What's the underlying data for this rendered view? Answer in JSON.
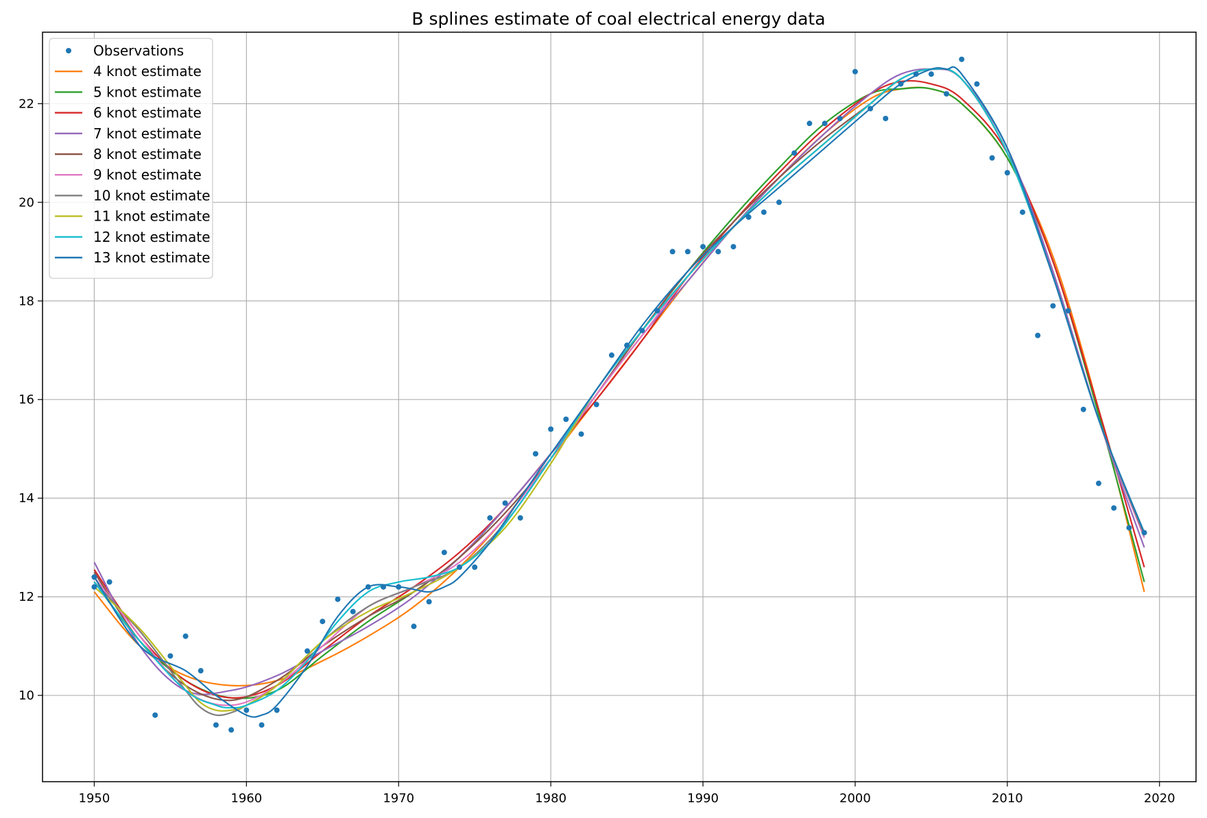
{
  "chart_data": {
    "type": "line",
    "title": "B splines estimate of coal electrical energy data",
    "xlabel": "",
    "ylabel": "",
    "xlim": [
      1946.6,
      1922.4
    ],
    "xlim_note": "",
    "ylim": [
      8.25,
      23.45
    ],
    "xticks": [
      1950,
      1960,
      1970,
      1980,
      1990,
      2000,
      2010,
      2020
    ],
    "yticks": [
      10,
      12,
      14,
      16,
      18,
      20,
      22
    ],
    "grid": true,
    "legend_position": "top-left",
    "observations": {
      "name": "Observations",
      "color": "#1f77b4",
      "x": [
        1950,
        1950,
        1951,
        1954,
        1955,
        1956,
        1957,
        1958,
        1959,
        1960,
        1961,
        1962,
        1964,
        1965,
        1966,
        1967,
        1968,
        1969,
        1970,
        1971,
        1972,
        1973,
        1974,
        1975,
        1976,
        1977,
        1978,
        1979,
        1980,
        1981,
        1982,
        1983,
        1984,
        1985,
        1986,
        1987,
        1988,
        1989,
        1990,
        1991,
        1992,
        1993,
        1994,
        1995,
        1996,
        1997,
        1998,
        1999,
        2000,
        2001,
        2002,
        2003,
        2004,
        2005,
        2006,
        2007,
        2008,
        2009,
        2010,
        2011,
        2012,
        2013,
        2014,
        2015,
        2016,
        2017,
        2018,
        2019
      ],
      "y": [
        12.4,
        12.2,
        12.3,
        9.6,
        10.8,
        11.2,
        10.5,
        9.4,
        9.3,
        9.7,
        9.4,
        9.7,
        10.9,
        11.5,
        11.95,
        11.7,
        12.2,
        12.2,
        12.2,
        11.4,
        11.9,
        12.9,
        12.6,
        12.6,
        13.6,
        13.9,
        13.6,
        14.9,
        15.4,
        15.6,
        15.3,
        15.9,
        16.9,
        17.1,
        17.4,
        17.8,
        19.0,
        19.0,
        19.1,
        19.0,
        19.1,
        19.7,
        19.8,
        20.0,
        21.0,
        21.6,
        21.6,
        21.7,
        22.65,
        21.9,
        21.7,
        22.4,
        22.6,
        22.6,
        22.2,
        22.9,
        22.4,
        20.9,
        20.6,
        19.8,
        17.3,
        17.9,
        17.8,
        15.8,
        14.3,
        13.8,
        13.4,
        13.3
      ]
    },
    "series": [
      {
        "name": "4 knot estimate",
        "color": "#ff7f0e",
        "x": [
          1950,
          1953,
          1956,
          1959,
          1962,
          1965,
          1968,
          1971,
          1974,
          1977,
          1980,
          1983,
          1986,
          1989,
          1992,
          1995,
          1998,
          2001,
          2003,
          2005,
          2007,
          2010,
          2013,
          2016,
          2019
        ],
        "y": [
          12.1,
          11.0,
          10.4,
          10.2,
          10.3,
          10.7,
          11.2,
          11.8,
          12.6,
          13.6,
          14.8,
          16.0,
          17.2,
          18.4,
          19.5,
          20.5,
          21.4,
          22.1,
          22.3,
          22.3,
          22.0,
          20.9,
          18.9,
          15.8,
          12.1
        ]
      },
      {
        "name": "5 knot estimate",
        "color": "#2ca02c",
        "x": [
          1950,
          1953,
          1956,
          1959,
          1962,
          1965,
          1968,
          1971,
          1974,
          1977,
          1980,
          1983,
          1986,
          1989,
          1992,
          1995,
          1998,
          2001,
          2003,
          2005,
          2007,
          2010,
          2013,
          2016,
          2019
        ],
        "y": [
          12.3,
          11.1,
          10.3,
          9.95,
          10.1,
          10.8,
          11.5,
          12.1,
          12.8,
          13.8,
          14.9,
          16.1,
          17.4,
          18.6,
          19.7,
          20.7,
          21.6,
          22.2,
          22.3,
          22.3,
          22.0,
          20.9,
          18.8,
          15.7,
          12.3
        ]
      },
      {
        "name": "6 knot estimate",
        "color": "#d62728",
        "x": [
          1950,
          1953,
          1956,
          1959,
          1962,
          1965,
          1968,
          1971,
          1974,
          1977,
          1980,
          1983,
          1986,
          1989,
          1992,
          1995,
          1998,
          2001,
          2003,
          2005,
          2007,
          2010,
          2013,
          2016,
          2019
        ],
        "y": [
          12.55,
          11.2,
          10.3,
          9.95,
          10.2,
          10.9,
          11.6,
          12.2,
          12.9,
          13.8,
          14.9,
          16.0,
          17.2,
          18.5,
          19.6,
          20.6,
          21.5,
          22.2,
          22.45,
          22.4,
          22.1,
          21.0,
          18.8,
          15.8,
          12.6
        ]
      },
      {
        "name": "7 knot estimate",
        "color": "#9467bd",
        "x": [
          1950,
          1953,
          1956,
          1959,
          1962,
          1965,
          1968,
          1971,
          1974,
          1977,
          1980,
          1983,
          1986,
          1989,
          1992,
          1995,
          1998,
          2001,
          2003,
          2005,
          2007,
          2010,
          2013,
          2016,
          2019
        ],
        "y": [
          12.7,
          11.0,
          10.1,
          10.1,
          10.4,
          10.9,
          11.4,
          12.0,
          12.8,
          13.8,
          14.9,
          16.1,
          17.3,
          18.4,
          19.5,
          20.5,
          21.4,
          22.2,
          22.6,
          22.7,
          22.5,
          21.1,
          18.6,
          15.6,
          13.0
        ]
      },
      {
        "name": "8 knot estimate",
        "color": "#8c564b",
        "x": [
          1950,
          1953,
          1956,
          1959,
          1962,
          1965,
          1968,
          1971,
          1974,
          1977,
          1980,
          1983,
          1986,
          1989,
          1992,
          1995,
          1998,
          2001,
          2003,
          2005,
          2007,
          2010,
          2013,
          2016,
          2019
        ],
        "y": [
          12.5,
          11.1,
          10.2,
          9.9,
          10.3,
          11.0,
          11.6,
          12.1,
          12.8,
          13.7,
          14.8,
          16.1,
          17.4,
          18.6,
          19.6,
          20.5,
          21.3,
          22.0,
          22.5,
          22.7,
          22.5,
          21.0,
          18.5,
          15.6,
          13.2
        ]
      },
      {
        "name": "9 knot estimate",
        "color": "#e377c2",
        "x": [
          1950,
          1953,
          1956,
          1959,
          1962,
          1965,
          1968,
          1971,
          1974,
          1977,
          1980,
          1983,
          1986,
          1989,
          1992,
          1995,
          1998,
          2001,
          2003,
          2005,
          2007,
          2010,
          2013,
          2016,
          2019
        ],
        "y": [
          12.4,
          11.2,
          10.1,
          9.8,
          10.2,
          11.0,
          11.8,
          12.2,
          12.7,
          13.6,
          14.8,
          16.1,
          17.3,
          18.5,
          19.5,
          20.4,
          21.2,
          22.0,
          22.5,
          22.7,
          22.5,
          21.0,
          18.5,
          15.6,
          13.2
        ]
      },
      {
        "name": "10 knot estimate",
        "color": "#7f7f7f",
        "x": [
          1950,
          1953,
          1956,
          1957,
          1958,
          1959,
          1960,
          1962,
          1965,
          1968,
          1971,
          1974,
          1977,
          1980,
          1983,
          1986,
          1989,
          1992,
          1995,
          1998,
          2001,
          2003,
          2005,
          2007,
          2010,
          2013,
          2016,
          2019
        ],
        "y": [
          12.3,
          11.3,
          10.1,
          9.75,
          9.6,
          9.65,
          9.8,
          10.2,
          11.1,
          11.8,
          12.2,
          12.6,
          13.5,
          14.8,
          16.2,
          17.4,
          18.5,
          19.5,
          20.4,
          21.2,
          22.0,
          22.5,
          22.7,
          22.5,
          21.0,
          18.5,
          15.6,
          13.25
        ]
      },
      {
        "name": "11 knot estimate",
        "color": "#bcbd22",
        "x": [
          1950,
          1953,
          1956,
          1957,
          1958,
          1959,
          1960,
          1962,
          1965,
          1968,
          1971,
          1974,
          1977,
          1980,
          1983,
          1986,
          1989,
          1992,
          1995,
          1998,
          2001,
          2003,
          2005,
          2007,
          2010,
          2013,
          2016,
          2019
        ],
        "y": [
          12.2,
          11.35,
          10.2,
          9.85,
          9.7,
          9.7,
          9.8,
          10.2,
          11.1,
          11.7,
          12.1,
          12.6,
          13.4,
          14.7,
          16.2,
          17.4,
          18.5,
          19.5,
          20.4,
          21.2,
          22.0,
          22.5,
          22.7,
          22.5,
          21.0,
          18.5,
          15.6,
          13.3
        ]
      },
      {
        "name": "12 knot estimate",
        "color": "#17becf",
        "x": [
          1950,
          1953,
          1956,
          1958,
          1959,
          1960,
          1962,
          1964,
          1966,
          1968,
          1970,
          1972,
          1974,
          1976,
          1978,
          1980,
          1983,
          1986,
          1989,
          1992,
          1995,
          1998,
          2001,
          2003,
          2005,
          2007,
          2010,
          2013,
          2016,
          2019
        ],
        "y": [
          12.3,
          11.1,
          10.1,
          9.8,
          9.75,
          9.8,
          10.1,
          10.7,
          11.5,
          12.1,
          12.3,
          12.4,
          12.6,
          13.1,
          13.9,
          14.8,
          16.2,
          17.4,
          18.5,
          19.5,
          20.4,
          21.2,
          22.0,
          22.5,
          22.7,
          22.5,
          21.0,
          18.5,
          15.6,
          13.3
        ]
      },
      {
        "name": "13 knot estimate",
        "color": "#1f77b4",
        "x": [
          1950,
          1953,
          1956,
          1958,
          1960,
          1961,
          1962,
          1964,
          1966,
          1968,
          1970,
          1971,
          1972,
          1973,
          1974,
          1976,
          1978,
          1980,
          1983,
          1986,
          1989,
          1992,
          1995,
          1998,
          2001,
          2003,
          2005,
          2006,
          2007,
          2010,
          2013,
          2016,
          2019
        ],
        "y": [
          12.4,
          11.0,
          10.5,
          10.0,
          9.6,
          9.6,
          9.8,
          10.6,
          11.6,
          12.2,
          12.2,
          12.15,
          12.1,
          12.2,
          12.4,
          13.1,
          14.0,
          14.9,
          16.2,
          17.5,
          18.6,
          19.5,
          20.3,
          21.1,
          21.9,
          22.4,
          22.7,
          22.7,
          22.6,
          21.1,
          18.5,
          15.6,
          13.3
        ]
      }
    ]
  }
}
